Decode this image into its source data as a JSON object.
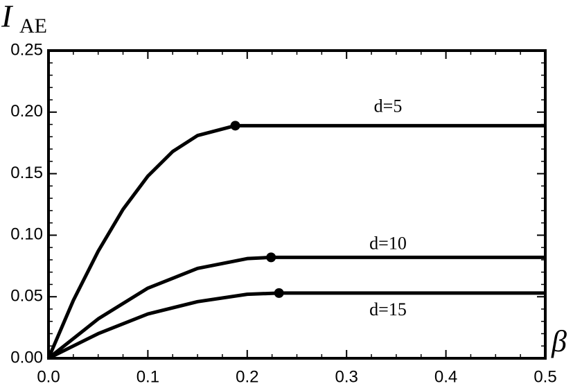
{
  "chart_data": {
    "type": "line",
    "y_label": "I",
    "y_label_subscript": "AE",
    "x_label": "β",
    "xlim": [
      0,
      0.5
    ],
    "ylim": [
      0,
      0.25
    ],
    "xticks": [
      {
        "value": 0,
        "label": "0.0"
      },
      0.1,
      0.2,
      0.3,
      0.4,
      0.5
    ],
    "yticks": [
      {
        "value": 0,
        "label": "0.00"
      },
      0.05,
      {
        "value": 0.1,
        "label": "0.10"
      },
      0.15,
      {
        "value": 0.2,
        "label": "0.20"
      },
      0.25
    ],
    "series": [
      {
        "name": "d=5",
        "color": "#000000",
        "x": [
          0,
          0.025,
          0.05,
          0.075,
          0.1,
          0.125,
          0.15,
          0.188,
          0.5
        ],
        "values": [
          0,
          0.047,
          0.087,
          0.121,
          0.148,
          0.168,
          0.181,
          0.189,
          0.189
        ],
        "markers": [
          {
            "x": 0.188,
            "y": 0.189
          }
        ]
      },
      {
        "name": "d=10",
        "color": "#000000",
        "x": [
          0,
          0.05,
          0.1,
          0.15,
          0.2,
          0.224,
          0.5
        ],
        "values": [
          0,
          0.032,
          0.057,
          0.073,
          0.081,
          0.082,
          0.082
        ],
        "markers": [
          {
            "x": 0.224,
            "y": 0.082
          }
        ]
      },
      {
        "name": "d=15",
        "color": "#000000",
        "x": [
          0,
          0.05,
          0.1,
          0.15,
          0.2,
          0.232,
          0.5
        ],
        "values": [
          0,
          0.02,
          0.036,
          0.046,
          0.052,
          0.053,
          0.053
        ],
        "markers": [
          {
            "x": 0.232,
            "y": 0.053
          }
        ]
      }
    ]
  }
}
